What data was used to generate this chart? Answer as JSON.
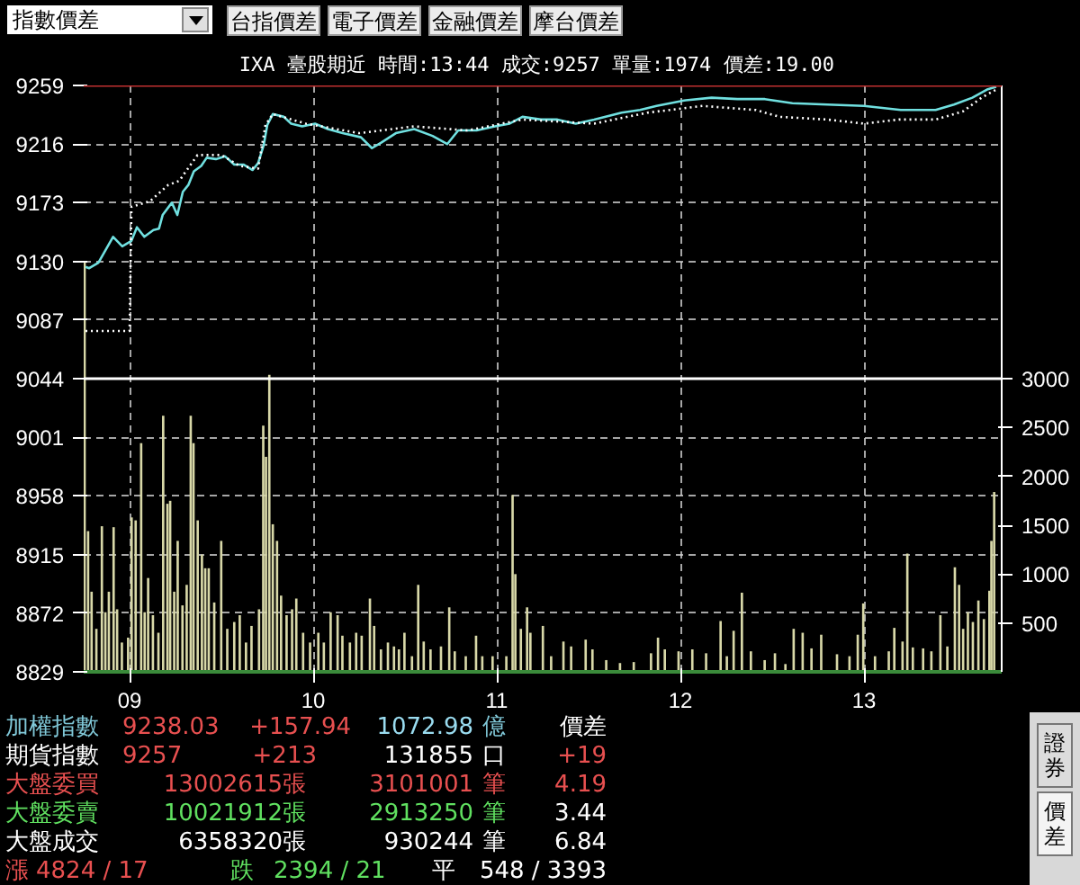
{
  "chart_data": {
    "type": "line",
    "title": "IXA  臺股期近 時間:13:44 成交:9257 單量:1974 價差:19.00",
    "xlim": [
      8.75,
      13.75
    ],
    "xticks": [
      {
        "value": 9,
        "label": "09"
      },
      {
        "value": 10,
        "label": "10"
      },
      {
        "value": 11,
        "label": "11"
      },
      {
        "value": 12,
        "label": "12"
      },
      {
        "value": 13,
        "label": "13"
      }
    ],
    "ylim": [
      8829,
      9259
    ],
    "yticks": [
      8829,
      8872,
      8915,
      8958,
      9001,
      9044,
      9087,
      9130,
      9173,
      9216,
      9259
    ],
    "y2lim": [
      0,
      6000
    ],
    "y2ticks": [
      500,
      1000,
      1500,
      2000,
      2500,
      3000
    ],
    "grid": true,
    "series": [
      {
        "type": "bar",
        "axis": "y2",
        "color": "#d8d8a8",
        "x": [
          8.755,
          8.774,
          8.793,
          8.819,
          8.849,
          8.868,
          8.887,
          8.913,
          8.932,
          8.958,
          8.992,
          9.011,
          9.033,
          9.063,
          9.082,
          9.101,
          9.127,
          9.157,
          9.183,
          9.206,
          9.221,
          9.243,
          9.262,
          9.288,
          9.311,
          9.333,
          9.348,
          9.371,
          9.394,
          9.412,
          9.431,
          9.461,
          9.499,
          9.532,
          9.57,
          9.6,
          9.634,
          9.664,
          9.705,
          9.728,
          9.743,
          9.761,
          9.78,
          9.803,
          9.825,
          9.855,
          9.885,
          9.908,
          9.945,
          9.983,
          10.028,
          10.058,
          10.095,
          10.133,
          10.159,
          10.2,
          10.234,
          10.264,
          10.309,
          10.332,
          10.369,
          10.407,
          10.44,
          10.467,
          10.497,
          10.538,
          10.572,
          10.602,
          10.639,
          10.696,
          10.741,
          10.771,
          10.831,
          10.887,
          10.921,
          10.977,
          11.052,
          11.086,
          11.101,
          11.131,
          11.165,
          11.183,
          11.251,
          11.296,
          11.363,
          11.405,
          11.484,
          11.521,
          11.596,
          11.671,
          11.746,
          11.84,
          11.878,
          11.915,
          11.99,
          12.065,
          12.14,
          12.219,
          12.253,
          12.29,
          12.335,
          12.384,
          12.459,
          12.515,
          12.572,
          12.617,
          12.666,
          12.714,
          12.767,
          12.853,
          12.921,
          12.966,
          12.996,
          13.06,
          13.135,
          13.165,
          13.21,
          13.236,
          13.266,
          13.322,
          13.367,
          13.416,
          13.454,
          13.495,
          13.518,
          13.54,
          13.566,
          13.593,
          13.623,
          13.653,
          13.683,
          13.694,
          13.709
        ],
        "values": [
          4200,
          1440,
          820,
          440,
          1490,
          610,
          820,
          1480,
          640,
          300,
          350,
          1580,
          1550,
          2340,
          610,
          960,
          580,
          400,
          2620,
          1720,
          1750,
          820,
          1340,
          680,
          890,
          2620,
          2340,
          1550,
          1200,
          1060,
          1060,
          710,
          1340,
          440,
          510,
          580,
          300,
          470,
          640,
          2520,
          2200,
          3040,
          1510,
          1340,
          780,
          580,
          640,
          750,
          400,
          300,
          400,
          300,
          610,
          580,
          370,
          300,
          400,
          370,
          750,
          470,
          230,
          300,
          260,
          230,
          400,
          160,
          890,
          310,
          230,
          260,
          660,
          210,
          160,
          370,
          160,
          160,
          160,
          1810,
          1000,
          440,
          660,
          400,
          470,
          160,
          310,
          260,
          330,
          230,
          120,
          90,
          100,
          190,
          350,
          230,
          210,
          230,
          190,
          520,
          160,
          420,
          810,
          210,
          120,
          190,
          80,
          440,
          400,
          240,
          380,
          180,
          160,
          380,
          700,
          160,
          210,
          450,
          310,
          1210,
          250,
          240,
          210,
          580,
          260,
          1070,
          890,
          440,
          610,
          510,
          730,
          540,
          830,
          1340,
          1840
        ]
      },
      {
        "color": "#70e0e0",
        "line_style": "solid",
        "x": [
          8.76,
          8.78,
          8.83,
          8.91,
          8.96,
          9.01,
          9.04,
          9.08,
          9.13,
          9.16,
          9.18,
          9.23,
          9.26,
          9.29,
          9.32,
          9.35,
          9.39,
          9.42,
          9.47,
          9.52,
          9.57,
          9.62,
          9.67,
          9.7,
          9.73,
          9.75,
          9.78,
          9.84,
          9.88,
          9.94,
          10.01,
          10.08,
          10.16,
          10.26,
          10.32,
          10.37,
          10.45,
          10.55,
          10.65,
          10.73,
          10.79,
          10.89,
          10.99,
          11.07,
          11.14,
          11.24,
          11.33,
          11.43,
          11.53,
          11.68,
          11.78,
          11.87,
          12.02,
          12.17,
          12.31,
          12.46,
          12.61,
          12.8,
          13.0,
          13.2,
          13.39,
          13.49,
          13.59,
          13.67,
          13.72
        ],
        "values": [
          9126,
          9125,
          9129,
          9148,
          9141,
          9145,
          9155,
          9148,
          9153,
          9154,
          9164,
          9173,
          9164,
          9181,
          9186,
          9196,
          9200,
          9206,
          9205,
          9207,
          9201,
          9201,
          9197,
          9202,
          9215,
          9230,
          9238,
          9236,
          9231,
          9229,
          9231,
          9227,
          9224,
          9221,
          9213,
          9217,
          9224,
          9227,
          9222,
          9216,
          9226,
          9226,
          9229,
          9231,
          9236,
          9234,
          9234,
          9231,
          9234,
          9239,
          9241,
          9244,
          9248,
          9250,
          9249,
          9249,
          9246,
          9245,
          9244,
          9241,
          9241,
          9245,
          9250,
          9256,
          9258
        ]
      },
      {
        "color": "#ffffff",
        "line_style": "dotted",
        "x": [
          8.76,
          9.0,
          9.01,
          9.11,
          9.21,
          9.27,
          9.37,
          9.42,
          9.5,
          9.6,
          9.7,
          9.74,
          9.78,
          9.96,
          10.25,
          10.55,
          10.84,
          11.14,
          11.53,
          11.82,
          12.12,
          12.41,
          12.54,
          12.8,
          13.0,
          13.19,
          13.39,
          13.54,
          13.64,
          13.72
        ],
        "values": [
          9079,
          9079,
          9170,
          9174,
          9186,
          9189,
          9208,
          9208,
          9208,
          9200,
          9198,
          9230,
          9238,
          9231,
          9224,
          9229,
          9226,
          9234,
          9231,
          9239,
          9244,
          9241,
          9236,
          9234,
          9231,
          9234,
          9234,
          9240,
          9250,
          9256
        ]
      }
    ],
    "ref_lines": [
      {
        "axis": "y",
        "value": 9259,
        "color": "#c03030",
        "line_style": "solid"
      },
      {
        "axis": "y",
        "value": 9044,
        "color": "#ffffff",
        "line_style": "solid"
      }
    ],
    "annotations": [
      "指數價差",
      "台指價差",
      "電子價差",
      "金融價差",
      "摩台價差",
      "加權指數",
      "9238.03",
      "+157.94",
      "1072.98",
      "億",
      "價差",
      "期貨指數",
      "9257",
      "+213",
      "131855",
      "口",
      "+19",
      "大盤委買",
      "13002615",
      "張",
      "3101001",
      "筆",
      "4.19",
      "大盤委賣",
      "10021912",
      "張",
      "2913250",
      "筆",
      "3.44",
      "大盤成交",
      "6358320",
      "張",
      "930244",
      "筆",
      "6.84",
      "漲",
      "4824 / 17",
      "跌",
      "2394 / 21",
      "平",
      "548 / 3393",
      "證券",
      "價差"
    ]
  }
}
